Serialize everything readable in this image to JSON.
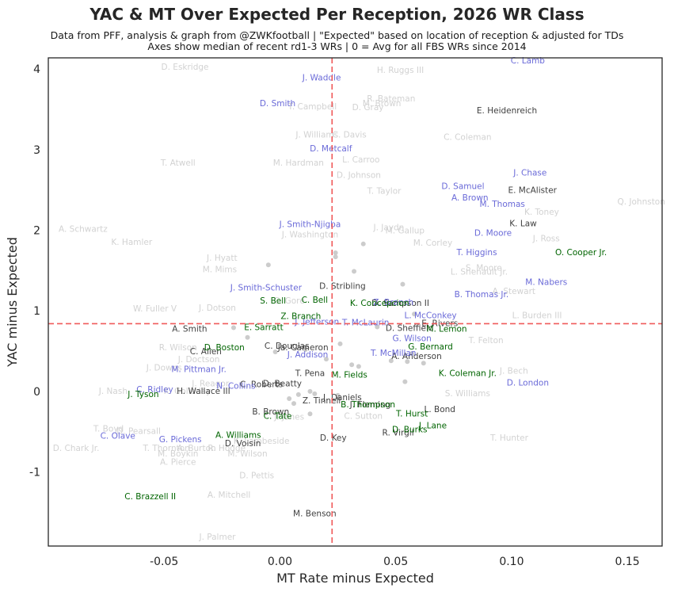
{
  "chart_data": {
    "type": "scatter",
    "title": "YAC & MT Over Expected Per Reception, 2026 WR Class",
    "subtitle_lines": [
      "Data from PFF, analysis & graph from @ZWKfootball | \"Expected\" based on location of reception & adjusted for TDs",
      "Axes show median of recent rd1-3 WRs | 0 = Avg for all FBS WRs since 2014"
    ],
    "xlabel": "MT Rate minus Expected",
    "ylabel": "YAC minus Expected",
    "xlim": [
      -0.1,
      0.165
    ],
    "ylim": [
      -1.92,
      4.14
    ],
    "xticks": [
      "-0.05",
      "0.00",
      "0.05",
      "0.10",
      "0.15"
    ],
    "xtick_values": [
      -0.05,
      0.0,
      0.05,
      0.1,
      0.15
    ],
    "yticks": [
      "-1",
      "0",
      "1",
      "2",
      "3",
      "4"
    ],
    "ytick_values": [
      -1,
      0,
      1,
      2,
      3,
      4
    ],
    "median_x": 0.0225,
    "median_y": 0.84,
    "colors": {
      "blue": "#6a6ad8",
      "green": "#006400",
      "dark": "#404040",
      "faint": "#d2d2d2",
      "median_line": "#f05a5a",
      "dot": "#cccccc"
    },
    "points": [
      {
        "label": "D. Eskridge",
        "x": -0.041,
        "y": 4.03,
        "group": "faint"
      },
      {
        "label": "J. Waddle",
        "x": 0.018,
        "y": 3.9,
        "group": "blue"
      },
      {
        "label": "H. Ruggs III",
        "x": 0.052,
        "y": 3.99,
        "group": "faint"
      },
      {
        "label": "C. Lamb",
        "x": 0.107,
        "y": 4.11,
        "group": "blue"
      },
      {
        "label": "R. Bateman",
        "x": 0.048,
        "y": 3.64,
        "group": "faint"
      },
      {
        "label": "D. Smith",
        "x": -0.001,
        "y": 3.58,
        "group": "blue"
      },
      {
        "label": "T. Campbell",
        "x": 0.014,
        "y": 3.54,
        "group": "faint"
      },
      {
        "label": "M. Brown",
        "x": 0.044,
        "y": 3.58,
        "group": "faint"
      },
      {
        "label": "D. Gray",
        "x": 0.038,
        "y": 3.53,
        "group": "faint"
      },
      {
        "label": "E. Heidenreich",
        "x": 0.098,
        "y": 3.49,
        "group": "dark"
      },
      {
        "label": "J. Williams",
        "x": 0.016,
        "y": 3.19,
        "group": "faint"
      },
      {
        "label": "C. Davis",
        "x": 0.03,
        "y": 3.19,
        "group": "faint"
      },
      {
        "label": "C. Coleman",
        "x": 0.081,
        "y": 3.16,
        "group": "faint"
      },
      {
        "label": "D. Metcalf",
        "x": 0.022,
        "y": 3.02,
        "group": "blue"
      },
      {
        "label": "T. Atwell",
        "x": -0.044,
        "y": 2.84,
        "group": "faint"
      },
      {
        "label": "M. Hardman",
        "x": 0.008,
        "y": 2.84,
        "group": "faint"
      },
      {
        "label": "L. Carroo",
        "x": 0.035,
        "y": 2.88,
        "group": "faint"
      },
      {
        "label": "D. Johnson",
        "x": 0.034,
        "y": 2.69,
        "group": "faint"
      },
      {
        "label": "J. Chase",
        "x": 0.108,
        "y": 2.72,
        "group": "blue"
      },
      {
        "label": "T. Taylor",
        "x": 0.045,
        "y": 2.49,
        "group": "faint"
      },
      {
        "label": "D. Samuel",
        "x": 0.079,
        "y": 2.55,
        "group": "blue"
      },
      {
        "label": "E. McAlister",
        "x": 0.109,
        "y": 2.5,
        "group": "dark"
      },
      {
        "label": "A. Brown",
        "x": 0.082,
        "y": 2.41,
        "group": "blue"
      },
      {
        "label": "M. Thomas",
        "x": 0.096,
        "y": 2.33,
        "group": "blue"
      },
      {
        "label": "Q. Johnston",
        "x": 0.156,
        "y": 2.36,
        "group": "faint"
      },
      {
        "label": "K. Toney",
        "x": 0.113,
        "y": 2.23,
        "group": "faint"
      },
      {
        "label": "J. Smith-Njigba",
        "x": 0.013,
        "y": 2.08,
        "group": "blue"
      },
      {
        "label": "J. Jaydn",
        "x": 0.047,
        "y": 2.04,
        "group": "faint"
      },
      {
        "label": "K. Law",
        "x": 0.105,
        "y": 2.09,
        "group": "dark"
      },
      {
        "label": "A. Schwartz",
        "x": -0.085,
        "y": 2.02,
        "group": "faint"
      },
      {
        "label": "J. Washington",
        "x": 0.013,
        "y": 1.95,
        "group": "faint"
      },
      {
        "label": "M. Gallup",
        "x": 0.054,
        "y": 2.0,
        "group": "faint"
      },
      {
        "label": "D. Moore",
        "x": 0.092,
        "y": 1.97,
        "group": "blue"
      },
      {
        "label": "K. Hamler",
        "x": -0.064,
        "y": 1.86,
        "group": "faint"
      },
      {
        "label": "M. Corley",
        "x": 0.066,
        "y": 1.85,
        "group": "faint"
      },
      {
        "label": "J. Ross",
        "x": 0.115,
        "y": 1.9,
        "group": "faint"
      },
      {
        "label": "T. Higgins",
        "x": 0.085,
        "y": 1.73,
        "group": "blue"
      },
      {
        "label": "O. Cooper Jr.",
        "x": 0.13,
        "y": 1.73,
        "group": "green"
      },
      {
        "label": "J. Hyatt",
        "x": -0.025,
        "y": 1.66,
        "group": "faint"
      },
      {
        "label": "M. Mims",
        "x": -0.026,
        "y": 1.52,
        "group": "faint"
      },
      {
        "label": "S. Moore",
        "x": 0.088,
        "y": 1.54,
        "group": "faint"
      },
      {
        "label": "L. Shenault Jr.",
        "x": 0.086,
        "y": 1.49,
        "group": "faint"
      },
      {
        "label": "M. Nabers",
        "x": 0.115,
        "y": 1.36,
        "group": "blue"
      },
      {
        "label": "J. Smith-Schuster",
        "x": -0.006,
        "y": 1.29,
        "group": "blue"
      },
      {
        "label": "D. Stribling",
        "x": 0.027,
        "y": 1.31,
        "group": "dark"
      },
      {
        "label": "A. Stewart",
        "x": 0.101,
        "y": 1.25,
        "group": "faint"
      },
      {
        "label": "B. Thomas Jr.",
        "x": 0.087,
        "y": 1.21,
        "group": "blue"
      },
      {
        "label": "S. Bell",
        "x": -0.003,
        "y": 1.13,
        "group": "green"
      },
      {
        "label": "C. Bell",
        "x": 0.015,
        "y": 1.14,
        "group": "green"
      },
      {
        "label": "C. Gore",
        "x": 0.004,
        "y": 1.13,
        "group": "faint"
      },
      {
        "label": "K. Concepcion",
        "x": 0.043,
        "y": 1.1,
        "group": "green"
      },
      {
        "label": "Z. Branch",
        "x": 0.049,
        "y": 1.11,
        "group": "blue"
      },
      {
        "label": "D. Sampson II",
        "x": 0.052,
        "y": 1.1,
        "group": "dark"
      },
      {
        "label": "W. Fuller V",
        "x": -0.054,
        "y": 1.03,
        "group": "faint"
      },
      {
        "label": "J. Dotson",
        "x": -0.027,
        "y": 1.04,
        "group": "faint"
      },
      {
        "label": "Z. Branch",
        "x": 0.009,
        "y": 0.94,
        "group": "green"
      },
      {
        "label": "L. McConkey",
        "x": 0.065,
        "y": 0.95,
        "group": "blue"
      },
      {
        "label": "L. Burden III",
        "x": 0.111,
        "y": 0.95,
        "group": "faint"
      },
      {
        "label": "J. Jefferson",
        "x": 0.016,
        "y": 0.87,
        "group": "blue"
      },
      {
        "label": "T. McLaurin",
        "x": 0.037,
        "y": 0.86,
        "group": "blue"
      },
      {
        "label": "E. Rivers",
        "x": 0.069,
        "y": 0.85,
        "group": "dark"
      },
      {
        "label": "A. Smith",
        "x": -0.039,
        "y": 0.78,
        "group": "dark"
      },
      {
        "label": "E. Sarratt",
        "x": -0.007,
        "y": 0.8,
        "group": "green"
      },
      {
        "label": "D. Sheffield",
        "x": 0.056,
        "y": 0.79,
        "group": "dark"
      },
      {
        "label": "M. Lemon",
        "x": 0.072,
        "y": 0.78,
        "group": "green"
      },
      {
        "label": "G. Wilson",
        "x": 0.057,
        "y": 0.66,
        "group": "blue"
      },
      {
        "label": "T. Felton",
        "x": 0.089,
        "y": 0.64,
        "group": "faint"
      },
      {
        "label": "R. Wilson",
        "x": -0.044,
        "y": 0.55,
        "group": "faint"
      },
      {
        "label": "D. Boston",
        "x": -0.024,
        "y": 0.55,
        "group": "green"
      },
      {
        "label": "C. Douglas",
        "x": 0.003,
        "y": 0.57,
        "group": "dark"
      },
      {
        "label": "Ja. Cameron",
        "x": 0.01,
        "y": 0.55,
        "group": "dark"
      },
      {
        "label": "G. Bernard",
        "x": 0.065,
        "y": 0.56,
        "group": "green"
      },
      {
        "label": "C. Allen",
        "x": -0.032,
        "y": 0.5,
        "group": "dark"
      },
      {
        "label": "J. Addison",
        "x": 0.012,
        "y": 0.46,
        "group": "blue"
      },
      {
        "label": "T. McMillan",
        "x": 0.049,
        "y": 0.48,
        "group": "blue"
      },
      {
        "label": "A. Anderson",
        "x": 0.059,
        "y": 0.44,
        "group": "dark"
      },
      {
        "label": "J. Doctson",
        "x": -0.035,
        "y": 0.4,
        "group": "faint"
      },
      {
        "label": "J. Downs",
        "x": -0.05,
        "y": 0.3,
        "group": "faint"
      },
      {
        "label": "M. Pittman Jr.",
        "x": -0.035,
        "y": 0.28,
        "group": "blue"
      },
      {
        "label": "J. Bech",
        "x": 0.101,
        "y": 0.26,
        "group": "faint"
      },
      {
        "label": "T. Pena",
        "x": 0.013,
        "y": 0.23,
        "group": "dark"
      },
      {
        "label": "M. Fields",
        "x": 0.03,
        "y": 0.21,
        "group": "green"
      },
      {
        "label": "K. Coleman Jr.",
        "x": 0.081,
        "y": 0.23,
        "group": "green"
      },
      {
        "label": "J. Reagor",
        "x": -0.03,
        "y": 0.1,
        "group": "faint"
      },
      {
        "label": "C. Roberts",
        "x": -0.008,
        "y": 0.09,
        "group": "dark"
      },
      {
        "label": "D. Beatty",
        "x": 0.001,
        "y": 0.1,
        "group": "dark"
      },
      {
        "label": "N. Collins",
        "x": -0.019,
        "y": 0.07,
        "group": "blue"
      },
      {
        "label": "D. London",
        "x": 0.107,
        "y": 0.11,
        "group": "blue"
      },
      {
        "label": "J. Nash",
        "x": -0.072,
        "y": 0.01,
        "group": "faint"
      },
      {
        "label": "C. Ridley",
        "x": -0.054,
        "y": 0.03,
        "group": "blue"
      },
      {
        "label": "K. Golladay",
        "x": -0.04,
        "y": 0.01,
        "group": "faint"
      },
      {
        "label": "H. Wallace III",
        "x": -0.033,
        "y": 0.01,
        "group": "dark"
      },
      {
        "label": "J. Tyson",
        "x": -0.059,
        "y": -0.03,
        "group": "green"
      },
      {
        "label": "S. Williams",
        "x": 0.081,
        "y": -0.02,
        "group": "faint"
      },
      {
        "label": "J. Daniels",
        "x": 0.027,
        "y": -0.07,
        "group": "dark"
      },
      {
        "label": "Z. Tinnell",
        "x": 0.018,
        "y": -0.11,
        "group": "dark"
      },
      {
        "label": "B. Thompson",
        "x": 0.038,
        "y": -0.16,
        "group": "green"
      },
      {
        "label": "J. Fleming",
        "x": 0.039,
        "y": -0.16,
        "group": "dark"
      },
      {
        "label": "B. Brown",
        "x": -0.004,
        "y": -0.25,
        "group": "dark"
      },
      {
        "label": "C. Tate",
        "x": -0.001,
        "y": -0.3,
        "group": "green"
      },
      {
        "label": "J. Jones",
        "x": 0.004,
        "y": -0.31,
        "group": "faint"
      },
      {
        "label": "C. Sutton",
        "x": 0.036,
        "y": -0.3,
        "group": "faint"
      },
      {
        "label": "L. Bond",
        "x": 0.069,
        "y": -0.22,
        "group": "dark"
      },
      {
        "label": "T. Hurst",
        "x": 0.057,
        "y": -0.27,
        "group": "green"
      },
      {
        "label": "T. Boyd",
        "x": -0.074,
        "y": -0.46,
        "group": "faint"
      },
      {
        "label": "D. Pearsall",
        "x": -0.061,
        "y": -0.49,
        "group": "faint"
      },
      {
        "label": "J. Lane",
        "x": 0.066,
        "y": -0.42,
        "group": "green"
      },
      {
        "label": "D. Burks",
        "x": 0.056,
        "y": -0.47,
        "group": "green"
      },
      {
        "label": "R. Virgil",
        "x": 0.051,
        "y": -0.51,
        "group": "dark"
      },
      {
        "label": "C. Olave",
        "x": -0.07,
        "y": -0.55,
        "group": "blue"
      },
      {
        "label": "A. Williams",
        "x": -0.018,
        "y": -0.54,
        "group": "green"
      },
      {
        "label": "K. Lambeside",
        "x": -0.008,
        "y": -0.61,
        "group": "faint"
      },
      {
        "label": "T. Hunter",
        "x": 0.099,
        "y": -0.57,
        "group": "faint"
      },
      {
        "label": "G. Pickens",
        "x": -0.043,
        "y": -0.59,
        "group": "blue"
      },
      {
        "label": "D. Key",
        "x": 0.023,
        "y": -0.57,
        "group": "dark"
      },
      {
        "label": "D. Voisin",
        "x": -0.016,
        "y": -0.64,
        "group": "dark"
      },
      {
        "label": "D. Chark Jr.",
        "x": -0.088,
        "y": -0.7,
        "group": "faint"
      },
      {
        "label": "T. Thornton",
        "x": -0.049,
        "y": -0.7,
        "group": "faint"
      },
      {
        "label": "A. Burton",
        "x": -0.036,
        "y": -0.7,
        "group": "faint"
      },
      {
        "label": "R. Hodge",
        "x": -0.023,
        "y": -0.7,
        "group": "faint"
      },
      {
        "label": "M. Wilson",
        "x": -0.014,
        "y": -0.77,
        "group": "faint"
      },
      {
        "label": "M. Boykin",
        "x": -0.044,
        "y": -0.77,
        "group": "faint"
      },
      {
        "label": "A. Pierce",
        "x": -0.044,
        "y": -0.87,
        "group": "faint"
      },
      {
        "label": "D. Pettis",
        "x": -0.01,
        "y": -1.04,
        "group": "faint"
      },
      {
        "label": "C. Brazzell II",
        "x": -0.056,
        "y": -1.3,
        "group": "green"
      },
      {
        "label": "A. Mitchell",
        "x": -0.022,
        "y": -1.28,
        "group": "faint"
      },
      {
        "label": "M. Benson",
        "x": 0.015,
        "y": -1.51,
        "group": "dark"
      },
      {
        "label": "J. Palmer",
        "x": -0.027,
        "y": -1.8,
        "group": "faint"
      }
    ],
    "dots": [
      {
        "x": -0.005,
        "y": 1.57
      },
      {
        "x": 0.024,
        "y": 1.72
      },
      {
        "x": 0.024,
        "y": 1.67
      },
      {
        "x": 0.036,
        "y": 1.83
      },
      {
        "x": 0.032,
        "y": 1.49
      },
      {
        "x": 0.053,
        "y": 1.33
      },
      {
        "x": 0.058,
        "y": 0.96
      },
      {
        "x": -0.02,
        "y": 0.79
      },
      {
        "x": -0.014,
        "y": 0.67
      },
      {
        "x": -0.002,
        "y": 0.49
      },
      {
        "x": 0.011,
        "y": 0.52
      },
      {
        "x": 0.026,
        "y": 0.59
      },
      {
        "x": 0.02,
        "y": 0.4
      },
      {
        "x": 0.031,
        "y": 0.33
      },
      {
        "x": 0.034,
        "y": 0.31
      },
      {
        "x": 0.048,
        "y": 0.38
      },
      {
        "x": 0.055,
        "y": 0.37
      },
      {
        "x": 0.057,
        "y": 0.47
      },
      {
        "x": 0.062,
        "y": 0.35
      },
      {
        "x": 0.054,
        "y": 0.12
      },
      {
        "x": 0.013,
        "y": 0.0
      },
      {
        "x": 0.015,
        "y": -0.03
      },
      {
        "x": 0.008,
        "y": -0.04
      },
      {
        "x": 0.004,
        "y": -0.09
      },
      {
        "x": 0.006,
        "y": -0.15
      },
      {
        "x": 0.025,
        "y": -0.05
      },
      {
        "x": 0.013,
        "y": -0.28
      },
      {
        "x": 0.042,
        "y": 0.8
      }
    ]
  }
}
